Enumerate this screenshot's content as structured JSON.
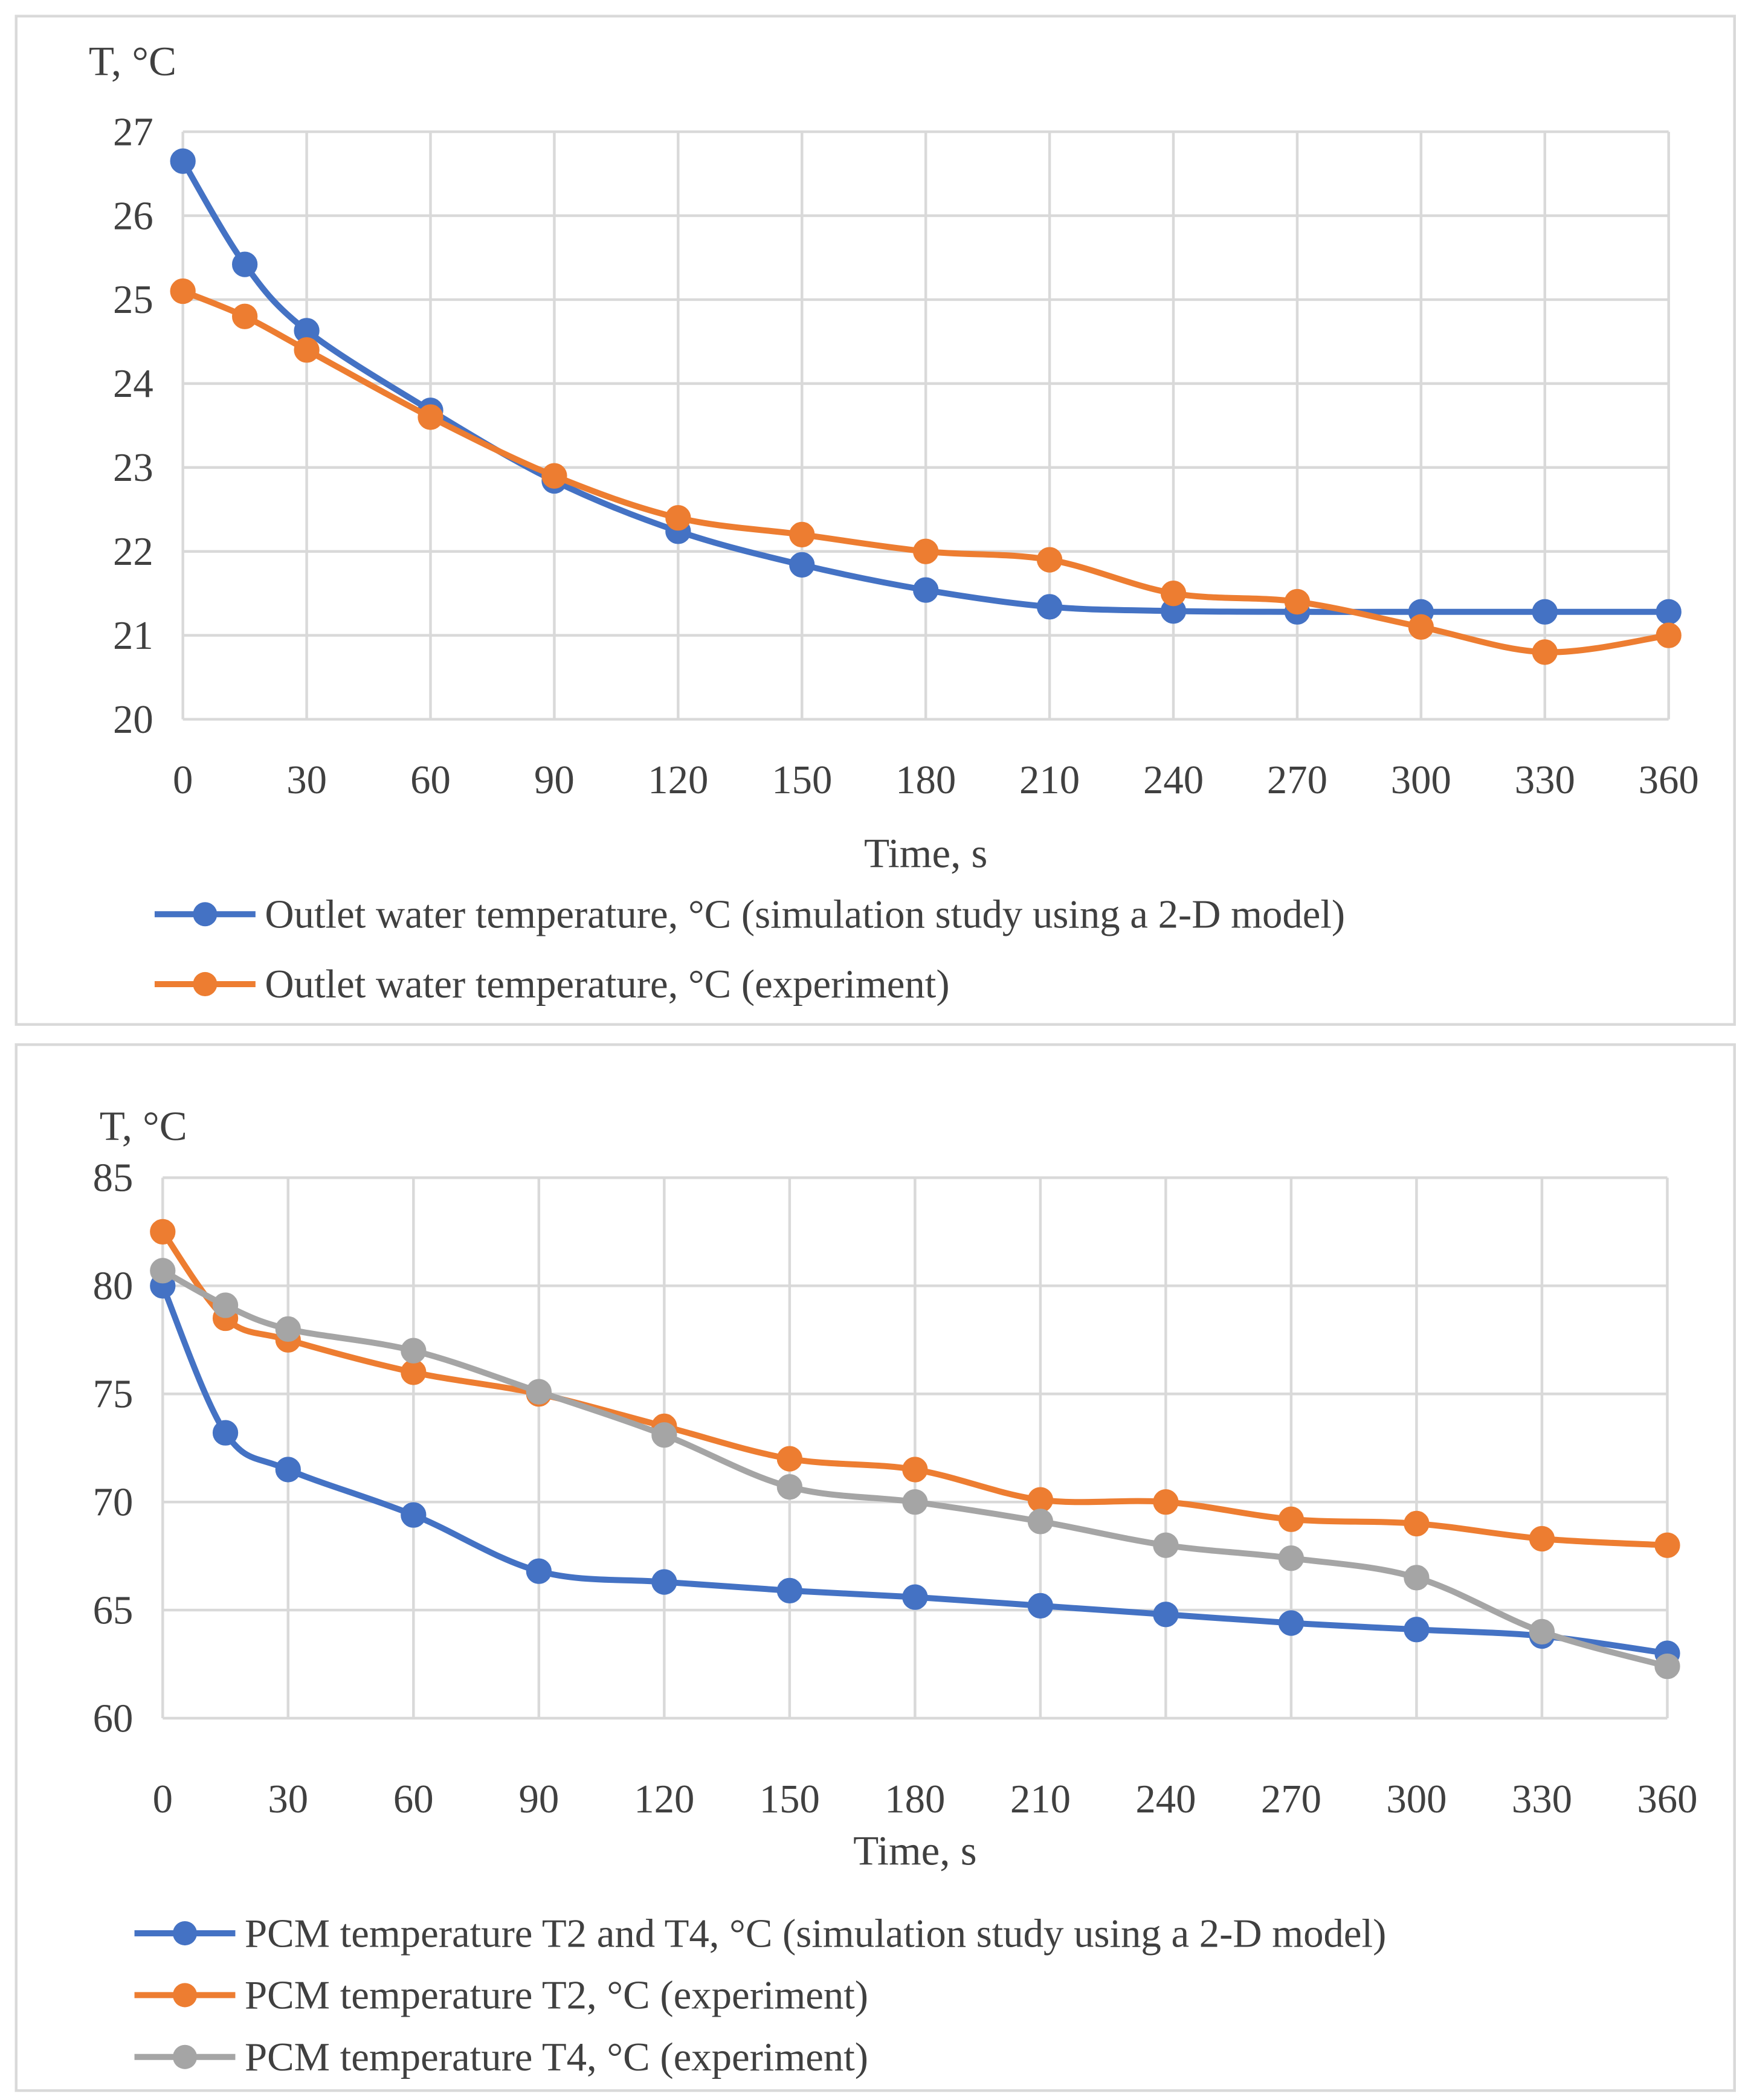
{
  "chart_data": [
    {
      "type": "line",
      "ylabel": "T, °C",
      "xlabel": "Time, s",
      "x": [
        0,
        15,
        30,
        60,
        90,
        120,
        150,
        180,
        210,
        240,
        270,
        300,
        330,
        360
      ],
      "xticks": [
        0,
        30,
        60,
        90,
        120,
        150,
        180,
        210,
        240,
        270,
        300,
        330,
        360
      ],
      "ylim": [
        20,
        27
      ],
      "yticks": [
        20,
        21,
        22,
        23,
        24,
        25,
        26,
        27
      ],
      "grid": true,
      "legend_position": "bottom",
      "series": [
        {
          "name": "Outlet water temperature, °C (simulation study using a 2-D model)",
          "color": "#4472C4",
          "values": [
            26.65,
            25.42,
            24.63,
            23.68,
            22.84,
            22.24,
            21.84,
            21.54,
            21.34,
            21.29,
            21.28,
            21.28,
            21.28,
            21.28
          ]
        },
        {
          "name": "Outlet water temperature, °C (experiment)",
          "color": "#ED7D31",
          "values": [
            25.1,
            24.8,
            24.4,
            23.6,
            22.9,
            22.4,
            22.2,
            22.0,
            21.9,
            21.5,
            21.4,
            21.1,
            20.8,
            21.0
          ]
        }
      ]
    },
    {
      "type": "line",
      "ylabel": "T, °C",
      "xlabel": "Time, s",
      "x": [
        0,
        15,
        30,
        60,
        90,
        120,
        150,
        180,
        210,
        240,
        270,
        300,
        330,
        360
      ],
      "xticks": [
        0,
        30,
        60,
        90,
        120,
        150,
        180,
        210,
        240,
        270,
        300,
        330,
        360
      ],
      "ylim": [
        60,
        85
      ],
      "yticks": [
        60,
        65,
        70,
        75,
        80,
        85
      ],
      "grid": true,
      "legend_position": "bottom",
      "series": [
        {
          "name": "PCM temperature T2 and T4, °C (simulation study using a 2-D model)",
          "color": "#4472C4",
          "values": [
            80.0,
            73.2,
            71.5,
            69.4,
            66.8,
            66.3,
            65.9,
            65.6,
            65.2,
            64.8,
            64.4,
            64.1,
            63.8,
            63.0
          ]
        },
        {
          "name": "PCM temperature T2, °C (experiment)",
          "color": "#ED7D31",
          "values": [
            82.5,
            78.5,
            77.5,
            76.0,
            75.0,
            73.5,
            72.0,
            71.5,
            70.1,
            70.0,
            69.2,
            69.0,
            68.3,
            68.0
          ]
        },
        {
          "name": "PCM temperature T4, °C (experiment)",
          "color": "#A5A5A5",
          "values": [
            80.7,
            79.1,
            78.0,
            77.0,
            75.1,
            73.1,
            70.7,
            70.0,
            69.1,
            68.0,
            67.4,
            66.5,
            64.0,
            62.4
          ]
        }
      ]
    }
  ]
}
